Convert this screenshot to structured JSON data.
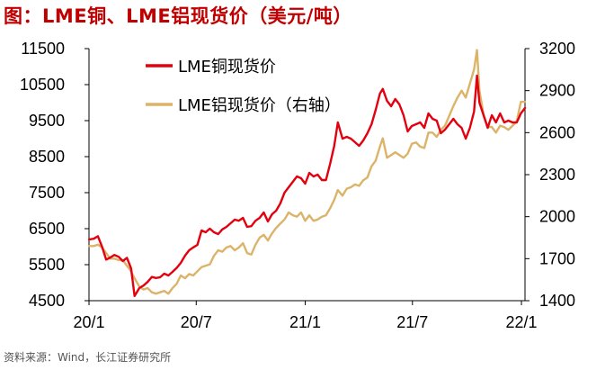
{
  "title": "图：LME铜、LME铝现货价（美元/吨）",
  "source": "资料来源：Wind，长江证券研究所",
  "chart_data": {
    "type": "line",
    "x_ticks": [
      "20/1",
      "20/7",
      "21/1",
      "21/7",
      "22/1"
    ],
    "y_left_ticks": [
      "11500",
      "10500",
      "9500",
      "8500",
      "7500",
      "6500",
      "5500",
      "4500"
    ],
    "y_right_ticks": [
      "3200",
      "2900",
      "2600",
      "2300",
      "2000",
      "1700",
      "1400"
    ],
    "y_left_range": [
      4500,
      11500
    ],
    "y_right_range": [
      1400,
      3200
    ],
    "x_range": [
      "2020-01-02",
      "2022-01-07"
    ],
    "legend_position": "top-left",
    "grid": false,
    "series": [
      {
        "name": "LME铜现货价",
        "axis": "left",
        "color": "#e3000f",
        "points": [
          [
            "2020-01-02",
            6200
          ],
          [
            "2020-01-10",
            6220
          ],
          [
            "2020-01-17",
            6290
          ],
          [
            "2020-01-24",
            6000
          ],
          [
            "2020-01-31",
            5640
          ],
          [
            "2020-02-07",
            5700
          ],
          [
            "2020-02-14",
            5770
          ],
          [
            "2020-02-21",
            5720
          ],
          [
            "2020-02-28",
            5600
          ],
          [
            "2020-03-06",
            5690
          ],
          [
            "2020-03-13",
            5400
          ],
          [
            "2020-03-19",
            4630
          ],
          [
            "2020-03-27",
            4850
          ],
          [
            "2020-04-03",
            4920
          ],
          [
            "2020-04-10",
            5020
          ],
          [
            "2020-04-17",
            5160
          ],
          [
            "2020-04-24",
            5130
          ],
          [
            "2020-05-01",
            5150
          ],
          [
            "2020-05-08",
            5250
          ],
          [
            "2020-05-15",
            5200
          ],
          [
            "2020-05-22",
            5300
          ],
          [
            "2020-05-29",
            5410
          ],
          [
            "2020-06-05",
            5550
          ],
          [
            "2020-06-12",
            5750
          ],
          [
            "2020-06-19",
            5900
          ],
          [
            "2020-06-26",
            5980
          ],
          [
            "2020-07-03",
            6050
          ],
          [
            "2020-07-10",
            6450
          ],
          [
            "2020-07-17",
            6400
          ],
          [
            "2020-07-24",
            6500
          ],
          [
            "2020-07-31",
            6400
          ],
          [
            "2020-08-07",
            6350
          ],
          [
            "2020-08-14",
            6480
          ],
          [
            "2020-08-21",
            6550
          ],
          [
            "2020-08-28",
            6650
          ],
          [
            "2020-09-04",
            6750
          ],
          [
            "2020-09-11",
            6720
          ],
          [
            "2020-09-18",
            6800
          ],
          [
            "2020-09-25",
            6550
          ],
          [
            "2020-10-02",
            6570
          ],
          [
            "2020-10-09",
            6720
          ],
          [
            "2020-10-16",
            6800
          ],
          [
            "2020-10-23",
            6950
          ],
          [
            "2020-10-30",
            6700
          ],
          [
            "2020-11-06",
            6900
          ],
          [
            "2020-11-13",
            7000
          ],
          [
            "2020-11-20",
            7200
          ],
          [
            "2020-11-27",
            7500
          ],
          [
            "2020-12-04",
            7650
          ],
          [
            "2020-12-11",
            7800
          ],
          [
            "2020-12-18",
            7950
          ],
          [
            "2020-12-25",
            7900
          ],
          [
            "2021-01-01",
            7750
          ],
          [
            "2021-01-08",
            8050
          ],
          [
            "2021-01-15",
            7950
          ],
          [
            "2021-01-22",
            8000
          ],
          [
            "2021-01-29",
            7850
          ],
          [
            "2021-02-05",
            7850
          ],
          [
            "2021-02-12",
            8300
          ],
          [
            "2021-02-19",
            8800
          ],
          [
            "2021-02-25",
            9450
          ],
          [
            "2021-03-05",
            9000
          ],
          [
            "2021-03-12",
            9050
          ],
          [
            "2021-03-19",
            9000
          ],
          [
            "2021-03-26",
            8900
          ],
          [
            "2021-04-02",
            8800
          ],
          [
            "2021-04-09",
            8950
          ],
          [
            "2021-04-16",
            9150
          ],
          [
            "2021-04-23",
            9400
          ],
          [
            "2021-04-30",
            9800
          ],
          [
            "2021-05-07",
            10250
          ],
          [
            "2021-05-12",
            10380
          ],
          [
            "2021-05-19",
            10050
          ],
          [
            "2021-05-26",
            9900
          ],
          [
            "2021-06-02",
            10100
          ],
          [
            "2021-06-09",
            9950
          ],
          [
            "2021-06-16",
            9650
          ],
          [
            "2021-06-23",
            9200
          ],
          [
            "2021-06-30",
            9350
          ],
          [
            "2021-07-07",
            9400
          ],
          [
            "2021-07-14",
            9450
          ],
          [
            "2021-07-21",
            9300
          ],
          [
            "2021-07-28",
            9700
          ],
          [
            "2021-08-04",
            9550
          ],
          [
            "2021-08-11",
            9500
          ],
          [
            "2021-08-18",
            9150
          ],
          [
            "2021-08-25",
            9250
          ],
          [
            "2021-09-01",
            9400
          ],
          [
            "2021-09-08",
            9550
          ],
          [
            "2021-09-15",
            9400
          ],
          [
            "2021-09-22",
            9300
          ],
          [
            "2021-09-29",
            9000
          ],
          [
            "2021-10-06",
            9300
          ],
          [
            "2021-10-13",
            9750
          ],
          [
            "2021-10-18",
            10750
          ],
          [
            "2021-10-22",
            10000
          ],
          [
            "2021-10-29",
            9650
          ],
          [
            "2021-11-05",
            9300
          ],
          [
            "2021-11-12",
            9650
          ],
          [
            "2021-11-19",
            9450
          ],
          [
            "2021-11-26",
            9700
          ],
          [
            "2021-12-03",
            9450
          ],
          [
            "2021-12-10",
            9500
          ],
          [
            "2021-12-17",
            9450
          ],
          [
            "2021-12-24",
            9450
          ],
          [
            "2021-12-31",
            9700
          ],
          [
            "2022-01-07",
            9850
          ]
        ]
      },
      {
        "name": "LME铝现货价（右轴）",
        "axis": "right",
        "color": "#dbb46a",
        "points": [
          [
            "2020-01-02",
            1790
          ],
          [
            "2020-01-10",
            1790
          ],
          [
            "2020-01-17",
            1800
          ],
          [
            "2020-01-24",
            1780
          ],
          [
            "2020-01-31",
            1740
          ],
          [
            "2020-02-07",
            1700
          ],
          [
            "2020-02-14",
            1700
          ],
          [
            "2020-02-21",
            1690
          ],
          [
            "2020-02-28",
            1690
          ],
          [
            "2020-03-06",
            1650
          ],
          [
            "2020-03-13",
            1610
          ],
          [
            "2020-03-19",
            1560
          ],
          [
            "2020-03-27",
            1500
          ],
          [
            "2020-04-03",
            1480
          ],
          [
            "2020-04-10",
            1490
          ],
          [
            "2020-04-17",
            1460
          ],
          [
            "2020-04-24",
            1450
          ],
          [
            "2020-05-01",
            1460
          ],
          [
            "2020-05-08",
            1470
          ],
          [
            "2020-05-15",
            1450
          ],
          [
            "2020-05-22",
            1490
          ],
          [
            "2020-05-29",
            1520
          ],
          [
            "2020-06-05",
            1580
          ],
          [
            "2020-06-12",
            1560
          ],
          [
            "2020-06-19",
            1590
          ],
          [
            "2020-06-26",
            1580
          ],
          [
            "2020-07-03",
            1610
          ],
          [
            "2020-07-10",
            1640
          ],
          [
            "2020-07-17",
            1650
          ],
          [
            "2020-07-24",
            1660
          ],
          [
            "2020-07-31",
            1720
          ],
          [
            "2020-08-07",
            1760
          ],
          [
            "2020-08-14",
            1750
          ],
          [
            "2020-08-21",
            1780
          ],
          [
            "2020-08-28",
            1790
          ],
          [
            "2020-09-04",
            1760
          ],
          [
            "2020-09-11",
            1780
          ],
          [
            "2020-09-18",
            1810
          ],
          [
            "2020-09-25",
            1740
          ],
          [
            "2020-10-02",
            1730
          ],
          [
            "2020-10-09",
            1800
          ],
          [
            "2020-10-16",
            1850
          ],
          [
            "2020-10-23",
            1870
          ],
          [
            "2020-10-30",
            1830
          ],
          [
            "2020-11-06",
            1880
          ],
          [
            "2020-11-13",
            1920
          ],
          [
            "2020-11-20",
            1950
          ],
          [
            "2020-11-27",
            1980
          ],
          [
            "2020-12-04",
            2030
          ],
          [
            "2020-12-11",
            2010
          ],
          [
            "2020-12-18",
            2000
          ],
          [
            "2020-12-25",
            2030
          ],
          [
            "2021-01-01",
            1970
          ],
          [
            "2021-01-08",
            2010
          ],
          [
            "2021-01-15",
            1970
          ],
          [
            "2021-01-22",
            1980
          ],
          [
            "2021-01-29",
            2000
          ],
          [
            "2021-02-05",
            2010
          ],
          [
            "2021-02-12",
            2060
          ],
          [
            "2021-02-19",
            2120
          ],
          [
            "2021-02-25",
            2190
          ],
          [
            "2021-03-05",
            2150
          ],
          [
            "2021-03-12",
            2200
          ],
          [
            "2021-03-19",
            2210
          ],
          [
            "2021-03-26",
            2230
          ],
          [
            "2021-04-02",
            2220
          ],
          [
            "2021-04-09",
            2260
          ],
          [
            "2021-04-16",
            2280
          ],
          [
            "2021-04-23",
            2360
          ],
          [
            "2021-04-30",
            2400
          ],
          [
            "2021-05-07",
            2500
          ],
          [
            "2021-05-12",
            2560
          ],
          [
            "2021-05-19",
            2420
          ],
          [
            "2021-05-26",
            2440
          ],
          [
            "2021-06-02",
            2460
          ],
          [
            "2021-06-09",
            2440
          ],
          [
            "2021-06-16",
            2420
          ],
          [
            "2021-06-23",
            2450
          ],
          [
            "2021-06-30",
            2520
          ],
          [
            "2021-07-07",
            2530
          ],
          [
            "2021-07-14",
            2500
          ],
          [
            "2021-07-21",
            2490
          ],
          [
            "2021-07-28",
            2600
          ],
          [
            "2021-08-04",
            2600
          ],
          [
            "2021-08-11",
            2570
          ],
          [
            "2021-08-18",
            2620
          ],
          [
            "2021-08-25",
            2650
          ],
          [
            "2021-09-01",
            2720
          ],
          [
            "2021-09-08",
            2790
          ],
          [
            "2021-09-15",
            2850
          ],
          [
            "2021-09-22",
            2900
          ],
          [
            "2021-09-29",
            2850
          ],
          [
            "2021-10-06",
            2950
          ],
          [
            "2021-10-13",
            3050
          ],
          [
            "2021-10-18",
            3190
          ],
          [
            "2021-10-22",
            2900
          ],
          [
            "2021-10-29",
            2730
          ],
          [
            "2021-11-05",
            2640
          ],
          [
            "2021-11-12",
            2640
          ],
          [
            "2021-11-19",
            2600
          ],
          [
            "2021-11-26",
            2650
          ],
          [
            "2021-12-03",
            2640
          ],
          [
            "2021-12-10",
            2620
          ],
          [
            "2021-12-17",
            2650
          ],
          [
            "2021-12-24",
            2680
          ],
          [
            "2021-12-31",
            2820
          ],
          [
            "2022-01-07",
            2820
          ]
        ]
      }
    ]
  }
}
